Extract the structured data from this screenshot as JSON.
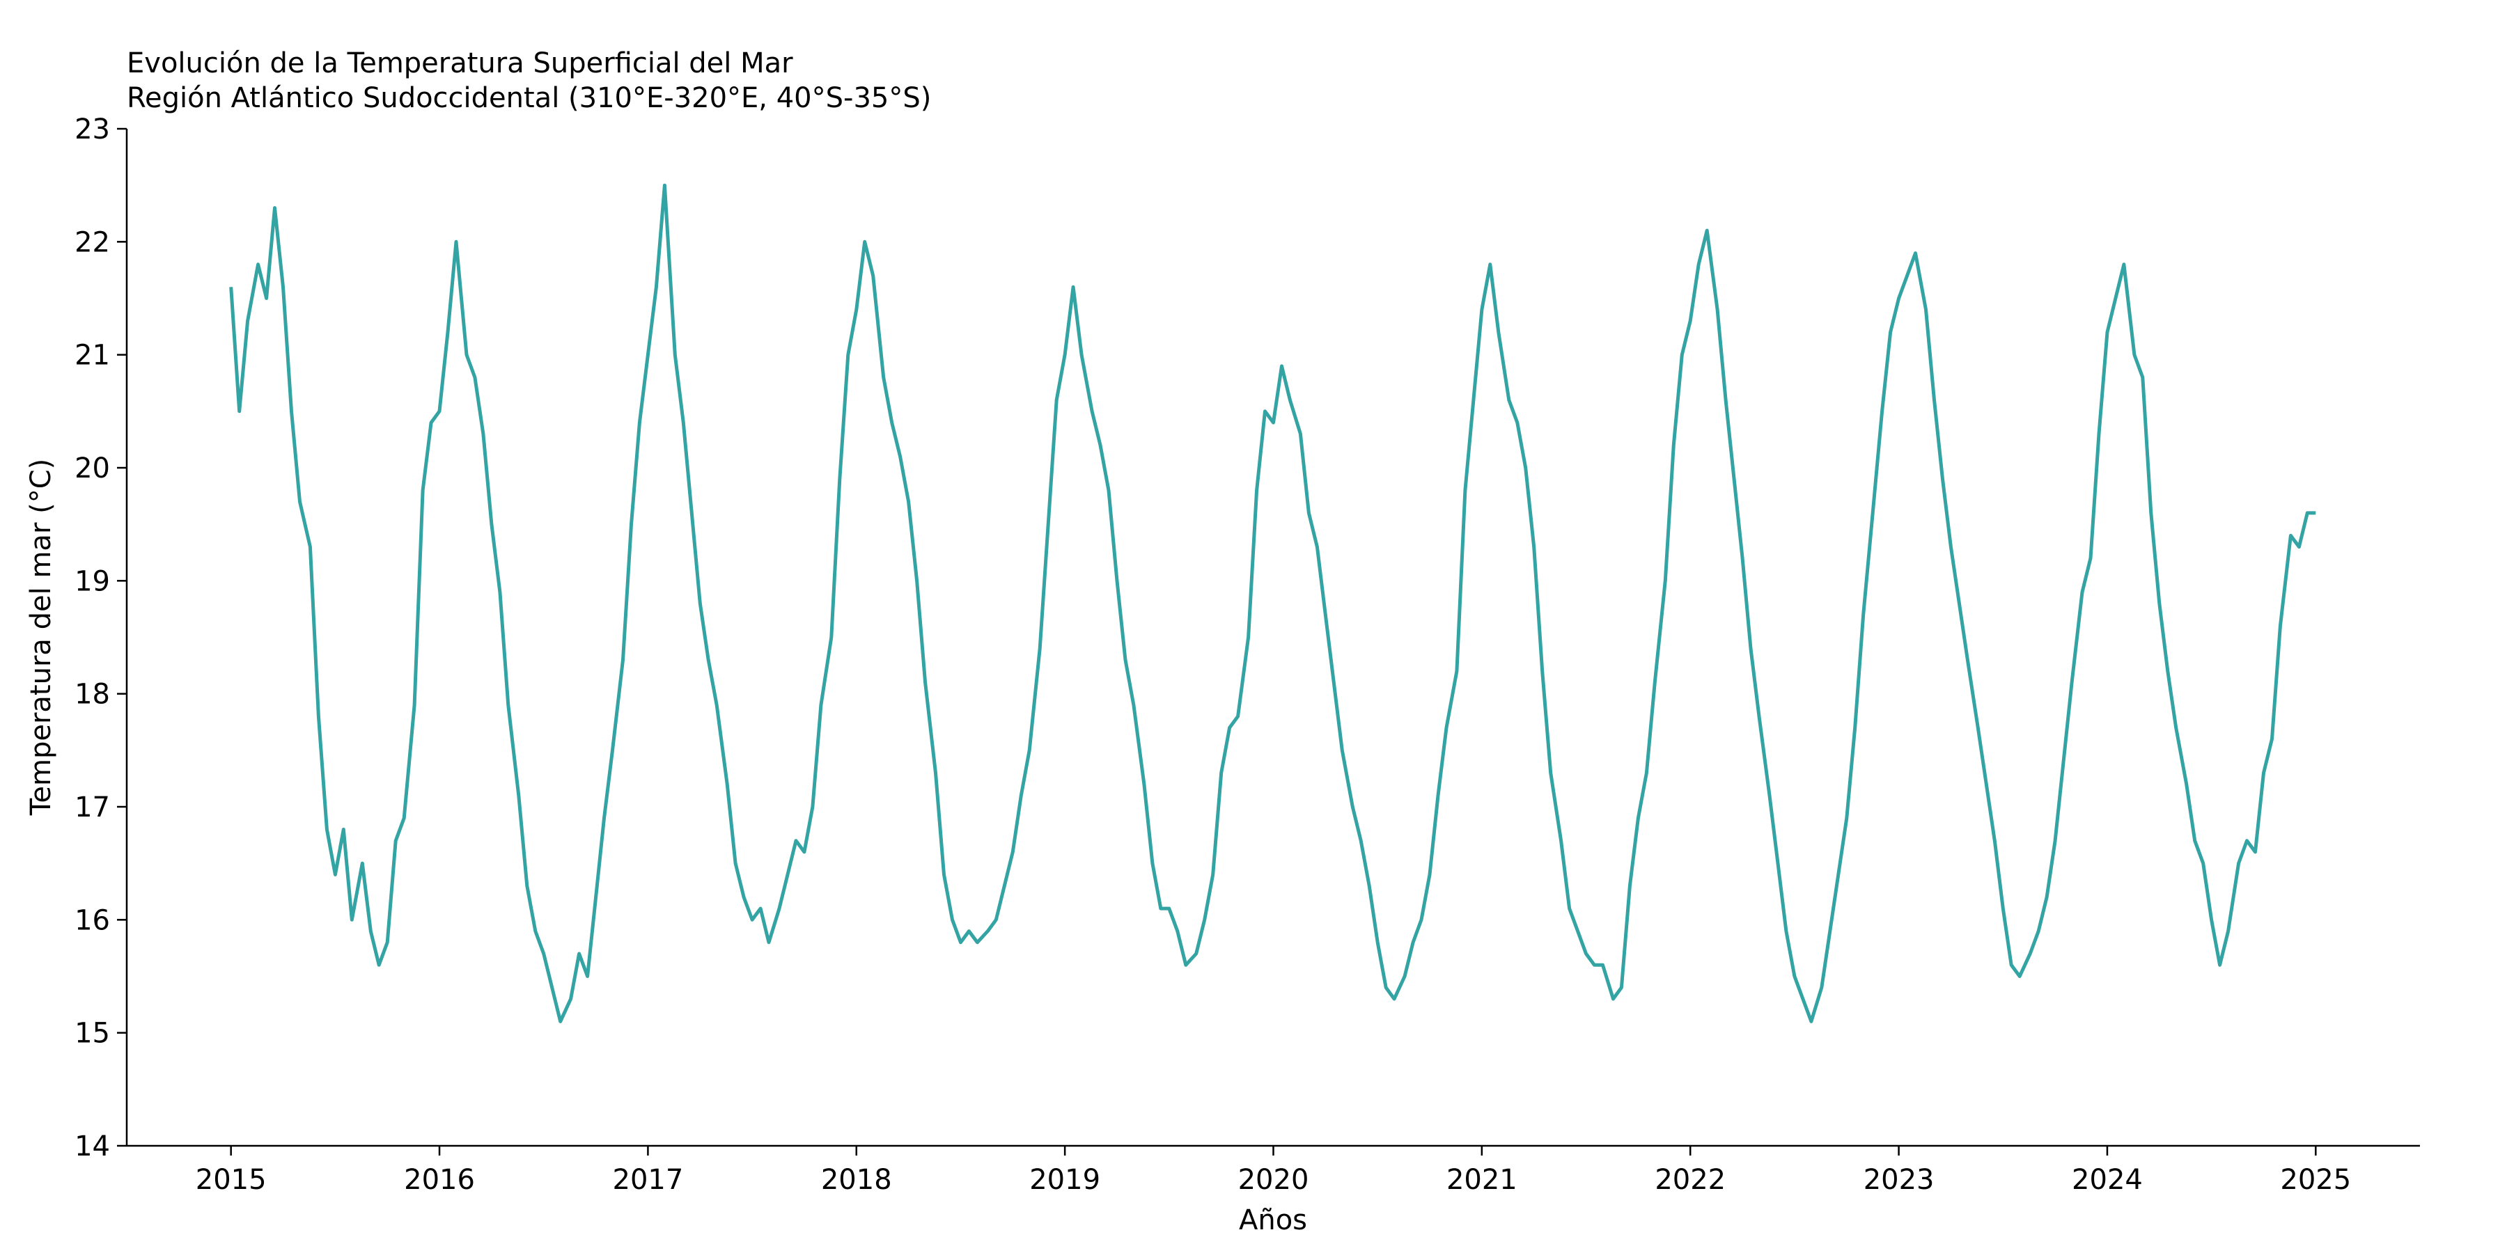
{
  "chart_data": {
    "type": "line",
    "title_line1": "Evolución de la Temperatura Superficial del Mar",
    "title_line2": "Región Atlántico Sudoccidental (310°E-320°E, 40°S-35°S)",
    "xlabel": "Años",
    "ylabel": "Temperatura del mar (°C)",
    "xlim": [
      2014.5,
      2025.5
    ],
    "ylim": [
      14,
      23
    ],
    "xticks": [
      "2015",
      "2016",
      "2017",
      "2018",
      "2019",
      "2020",
      "2021",
      "2022",
      "2023",
      "2024",
      "2025"
    ],
    "yticks": [
      "14",
      "15",
      "16",
      "17",
      "18",
      "19",
      "20",
      "21",
      "22",
      "23"
    ],
    "grid": false,
    "line_color": "#33a3a3",
    "series": [
      {
        "x": [
          2015.0,
          2015.04,
          2015.08,
          2015.13,
          2015.17,
          2015.21,
          2015.25,
          2015.29,
          2015.33,
          2015.38,
          2015.42,
          2015.46,
          2015.5,
          2015.54,
          2015.58,
          2015.63,
          2015.67,
          2015.71,
          2015.75,
          2015.79,
          2015.83,
          2015.88,
          2015.92,
          2015.96,
          2016.0,
          2016.04,
          2016.08,
          2016.13,
          2016.17,
          2016.21,
          2016.25,
          2016.29,
          2016.33,
          2016.38,
          2016.42,
          2016.46,
          2016.5,
          2016.54,
          2016.58,
          2016.63,
          2016.67,
          2016.71,
          2016.75,
          2016.79,
          2016.83,
          2016.88,
          2016.92,
          2016.96,
          2017.0,
          2017.04,
          2017.08,
          2017.13,
          2017.17,
          2017.21,
          2017.25,
          2017.29,
          2017.33,
          2017.38,
          2017.42,
          2017.46,
          2017.5,
          2017.54,
          2017.58,
          2017.63,
          2017.67,
          2017.71,
          2017.75,
          2017.79,
          2017.83,
          2017.88,
          2017.92,
          2017.96,
          2018.0,
          2018.04,
          2018.08,
          2018.13,
          2018.17,
          2018.21,
          2018.25,
          2018.29,
          2018.33,
          2018.38,
          2018.42,
          2018.46,
          2018.5,
          2018.54,
          2018.58,
          2018.63,
          2018.67,
          2018.71,
          2018.75,
          2018.79,
          2018.83,
          2018.88,
          2018.92,
          2018.96,
          2019.0,
          2019.04,
          2019.08,
          2019.13,
          2019.17,
          2019.21,
          2019.25,
          2019.29,
          2019.33,
          2019.38,
          2019.42,
          2019.46,
          2019.5,
          2019.54,
          2019.58,
          2019.63,
          2019.67,
          2019.71,
          2019.75,
          2019.79,
          2019.83,
          2019.88,
          2019.92,
          2019.96,
          2020.0,
          2020.04,
          2020.08,
          2020.13,
          2020.17,
          2020.21,
          2020.25,
          2020.29,
          2020.33,
          2020.38,
          2020.42,
          2020.46,
          2020.5,
          2020.54,
          2020.58,
          2020.63,
          2020.67,
          2020.71,
          2020.75,
          2020.79,
          2020.83,
          2020.88,
          2020.92,
          2020.96,
          2021.0,
          2021.04,
          2021.08,
          2021.13,
          2021.17,
          2021.21,
          2021.25,
          2021.29,
          2021.33,
          2021.38,
          2021.42,
          2021.46,
          2021.5,
          2021.54,
          2021.58,
          2021.63,
          2021.67,
          2021.71,
          2021.75,
          2021.79,
          2021.83,
          2021.88,
          2021.92,
          2021.96,
          2022.0,
          2022.04,
          2022.08,
          2022.13,
          2022.17,
          2022.21,
          2022.25,
          2022.29,
          2022.33,
          2022.38,
          2022.42,
          2022.46,
          2022.5,
          2022.54,
          2022.58,
          2022.63,
          2022.67,
          2022.71,
          2022.75,
          2022.79,
          2022.83,
          2022.88,
          2022.92,
          2022.96,
          2023.0,
          2023.04,
          2023.08,
          2023.13,
          2023.17,
          2023.21,
          2023.25,
          2023.29,
          2023.33,
          2023.38,
          2023.42,
          2023.46,
          2023.5,
          2023.54,
          2023.58,
          2023.63,
          2023.67,
          2023.71,
          2023.75,
          2023.79,
          2023.83,
          2023.88,
          2023.92,
          2023.96,
          2024.0,
          2024.04,
          2024.08,
          2024.13,
          2024.17,
          2024.21,
          2024.25,
          2024.29,
          2024.33,
          2024.38,
          2024.42,
          2024.46,
          2024.5,
          2024.54,
          2024.58,
          2024.63,
          2024.67,
          2024.71,
          2024.75,
          2024.79,
          2024.83,
          2024.88,
          2024.92,
          2024.96,
          2025.0
        ],
        "y": [
          21.6,
          20.5,
          21.3,
          21.8,
          21.5,
          22.3,
          21.6,
          20.5,
          19.7,
          19.3,
          17.8,
          16.8,
          16.4,
          16.8,
          16.0,
          16.5,
          15.9,
          15.6,
          15.8,
          16.7,
          16.9,
          17.9,
          19.8,
          20.4,
          20.5,
          21.2,
          22.0,
          21.0,
          20.8,
          20.3,
          19.5,
          18.9,
          17.9,
          17.1,
          16.3,
          15.9,
          15.7,
          15.4,
          15.1,
          15.3,
          15.7,
          15.5,
          16.2,
          16.9,
          17.5,
          18.3,
          19.5,
          20.4,
          21.0,
          21.6,
          22.5,
          21.0,
          20.4,
          19.6,
          18.8,
          18.3,
          17.9,
          17.2,
          16.5,
          16.2,
          16.0,
          16.1,
          15.8,
          16.1,
          16.4,
          16.7,
          16.6,
          17.0,
          17.9,
          18.5,
          19.9,
          21.0,
          21.4,
          22.0,
          21.7,
          20.8,
          20.4,
          20.1,
          19.7,
          19.0,
          18.1,
          17.3,
          16.4,
          16.0,
          15.8,
          15.9,
          15.8,
          15.9,
          16.0,
          16.3,
          16.6,
          17.1,
          17.5,
          18.4,
          19.5,
          20.6,
          21.0,
          21.6,
          21.0,
          20.5,
          20.2,
          19.8,
          19.0,
          18.3,
          17.9,
          17.2,
          16.5,
          16.1,
          16.1,
          15.9,
          15.6,
          15.7,
          16.0,
          16.4,
          17.3,
          17.7,
          17.8,
          18.5,
          19.8,
          20.5,
          20.4,
          20.9,
          20.6,
          20.3,
          19.6,
          19.3,
          18.7,
          18.1,
          17.5,
          17.0,
          16.7,
          16.3,
          15.8,
          15.4,
          15.3,
          15.5,
          15.8,
          16.0,
          16.4,
          17.1,
          17.7,
          18.2,
          19.8,
          20.6,
          21.4,
          21.8,
          21.2,
          20.6,
          20.4,
          20.0,
          19.3,
          18.2,
          17.3,
          16.7,
          16.1,
          15.9,
          15.7,
          15.6,
          15.6,
          15.3,
          15.4,
          16.3,
          16.9,
          17.3,
          18.1,
          19.0,
          20.2,
          21.0,
          21.3,
          21.8,
          22.1,
          21.4,
          20.6,
          19.9,
          19.2,
          18.4,
          17.8,
          17.1,
          16.5,
          15.9,
          15.5,
          15.3,
          15.1,
          15.4,
          15.9,
          16.4,
          16.9,
          17.7,
          18.7,
          19.7,
          20.5,
          21.2,
          21.5,
          21.7,
          21.9,
          21.4,
          20.6,
          19.9,
          19.3,
          18.8,
          18.3,
          17.7,
          17.2,
          16.7,
          16.1,
          15.6,
          15.5,
          15.7,
          15.9,
          16.2,
          16.7,
          17.4,
          18.1,
          18.9,
          19.2,
          20.3,
          21.2,
          21.5,
          21.8,
          21.0,
          20.8,
          19.6,
          18.8,
          18.2,
          17.7,
          17.2,
          16.7,
          16.5,
          16.0,
          15.6,
          15.9,
          16.5,
          16.7,
          16.6,
          17.3,
          17.6,
          18.6,
          19.4,
          19.3,
          19.6,
          19.6
        ]
      }
    ]
  }
}
